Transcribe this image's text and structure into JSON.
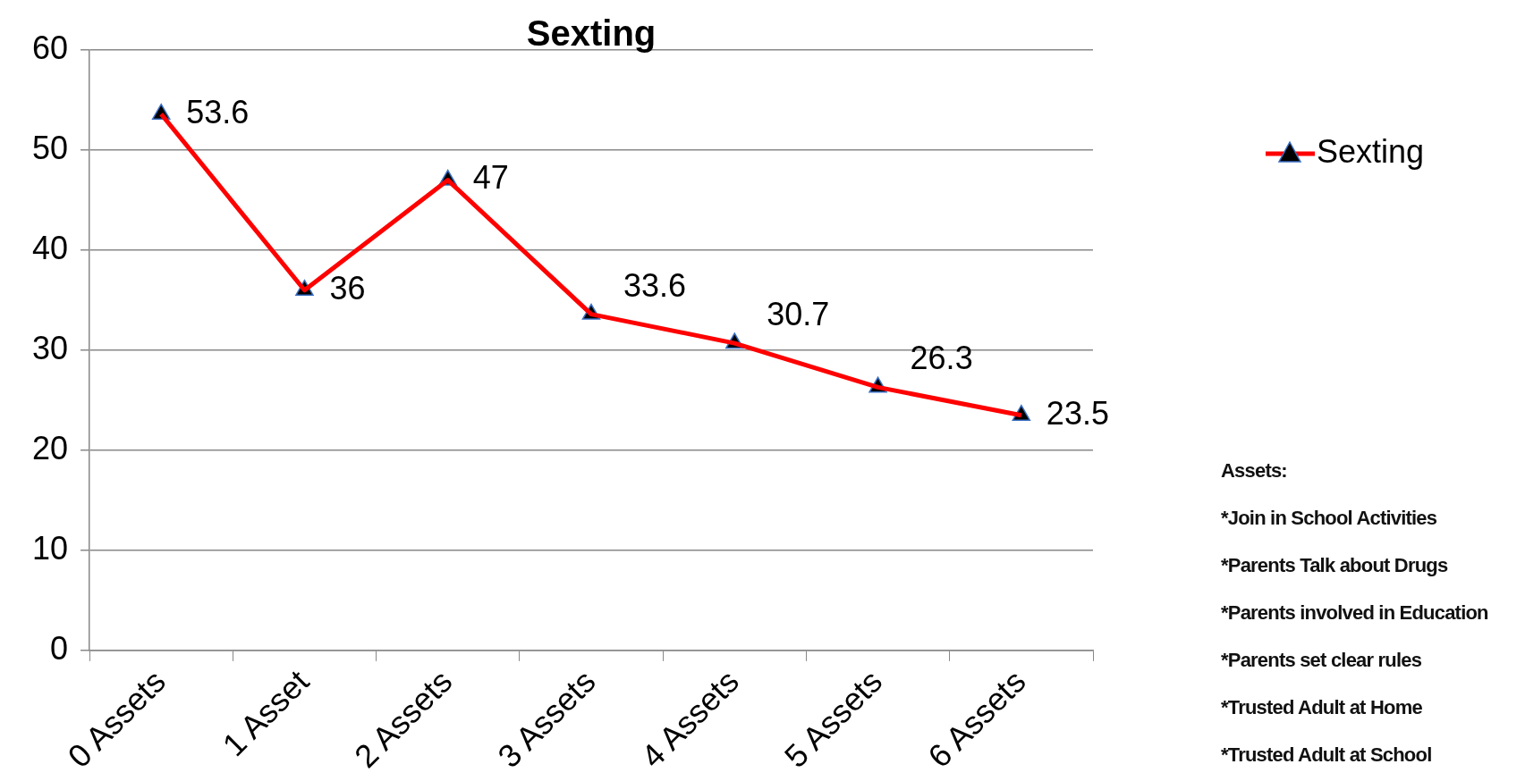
{
  "chart_data": {
    "type": "line",
    "title": "Sexting",
    "categories": [
      "0 Assets",
      "1 Asset",
      "2 Assets",
      "3 Assets",
      "4 Assets",
      "5 Assets",
      "6 Assets"
    ],
    "series": [
      {
        "name": "Sexting",
        "color": "#ff0000",
        "values": [
          53.6,
          36,
          47,
          33.6,
          30.7,
          26.3,
          23.5
        ]
      }
    ],
    "ylim": [
      0,
      60
    ],
    "yticks": [
      0,
      10,
      20,
      30,
      40,
      50,
      60
    ],
    "grid": "y",
    "legend": "right",
    "marker": "triangle",
    "line_style": "solid",
    "data_labels": true,
    "annotations": [
      "Assets:",
      "*Join in School Activities",
      "*Parents Talk about Drugs",
      "*Parents involved in Education",
      "*Parents set clear rules",
      "*Trusted Adult at Home",
      "*Trusted Adult at School"
    ]
  }
}
